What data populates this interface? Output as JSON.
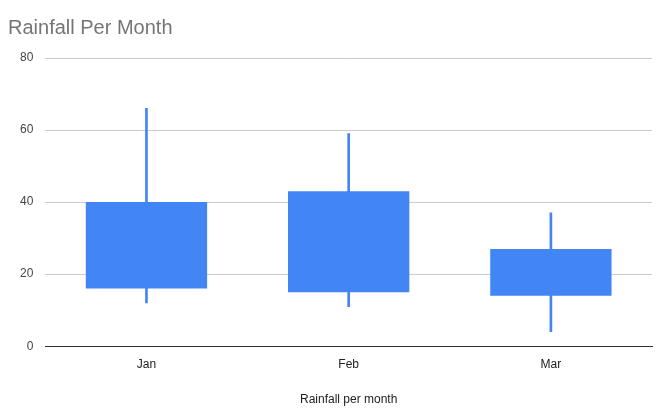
{
  "chart_data": {
    "type": "candlestick",
    "title": "Rainfall Per Month",
    "x_label": "Rainfall per month",
    "categories": [
      "Jan",
      "Feb",
      "Mar"
    ],
    "low": [
      12,
      11,
      4
    ],
    "open": [
      16,
      15,
      14
    ],
    "close": [
      40,
      43,
      27
    ],
    "high": [
      66,
      59,
      37
    ],
    "color": "#4285f4",
    "ylim": [
      0,
      80
    ],
    "yticks": [
      0,
      20,
      40,
      60,
      80
    ],
    "grid": true
  }
}
